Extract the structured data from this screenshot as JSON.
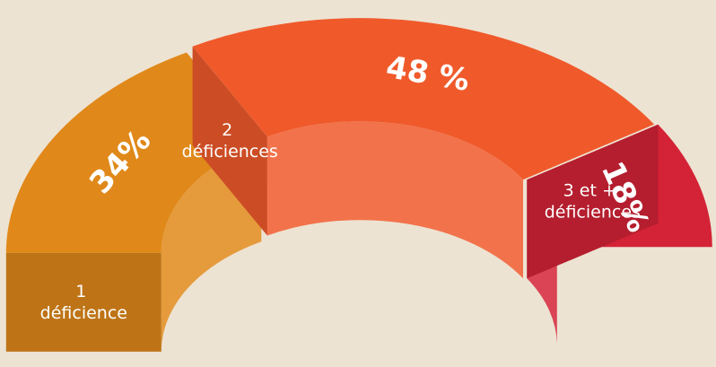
{
  "chart_data": {
    "type": "pie",
    "categories": [
      "1 déficience",
      "2 déficiences",
      "3 et + déficiences"
    ],
    "values": [
      34,
      48,
      18
    ],
    "value_labels": [
      "34%",
      "48 %",
      "18%"
    ],
    "colors": [
      "#e0891a",
      "#f05a2b",
      "#d42336"
    ]
  }
}
